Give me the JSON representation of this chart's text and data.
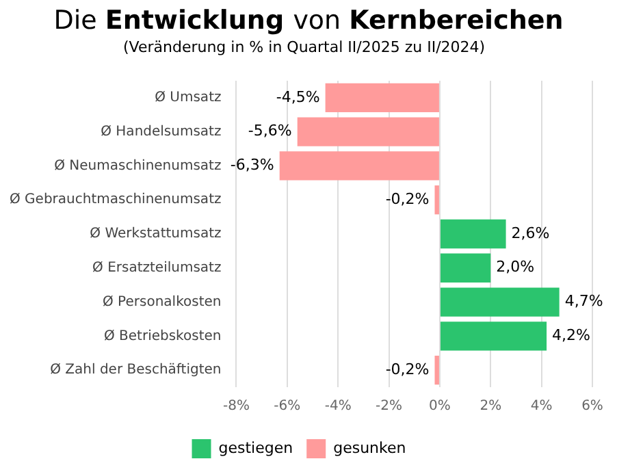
{
  "chart_data": {
    "type": "bar",
    "orientation": "horizontal",
    "stacked": true,
    "title": "Die Entwicklung von Kernbereichen",
    "subtitle": "(Veränderung in % in Quartal II/2025 zu II/2024)",
    "categories": [
      "Ø Umsatz",
      "Ø Handelsumsatz",
      "Ø Neumaschinenumsatz",
      "Ø Gebrauchtmaschinenumsatz",
      "Ø Werkstattumsatz",
      "Ø Ersatzteilumsatz",
      "Ø Personalkosten",
      "Ø Betriebskosten",
      "Ø Zahl der Beschäftigten"
    ],
    "series": [
      {
        "name": "gestiegen",
        "color": "#2bc46e",
        "values": [
          null,
          null,
          null,
          null,
          2.6,
          2.0,
          4.7,
          4.2,
          null
        ],
        "value_labels": [
          null,
          null,
          null,
          null,
          "2,6%",
          "2,0%",
          "4,7%",
          "4,2%",
          null
        ]
      },
      {
        "name": "gesunken",
        "color": "#ff9b9b",
        "values": [
          -4.5,
          -5.6,
          -6.3,
          -0.2,
          null,
          null,
          null,
          null,
          -0.2
        ],
        "value_labels": [
          "-4,5%",
          "-5,6%",
          "-6,3%",
          "-0,2%",
          null,
          null,
          null,
          null,
          "-0,2%"
        ]
      }
    ],
    "xlim": [
      -8,
      6
    ],
    "xticks": [
      {
        "value": -8,
        "label": "-8%"
      },
      {
        "value": -6,
        "label": "-6%"
      },
      {
        "value": -4,
        "label": "-4%"
      },
      {
        "value": -2,
        "label": "-2%"
      },
      {
        "value": 0,
        "label": "0%"
      },
      {
        "value": 2,
        "label": "2%"
      },
      {
        "value": 4,
        "label": "4%"
      },
      {
        "value": 6,
        "label": "6%"
      }
    ],
    "grid": "x",
    "legend": "bottom"
  }
}
